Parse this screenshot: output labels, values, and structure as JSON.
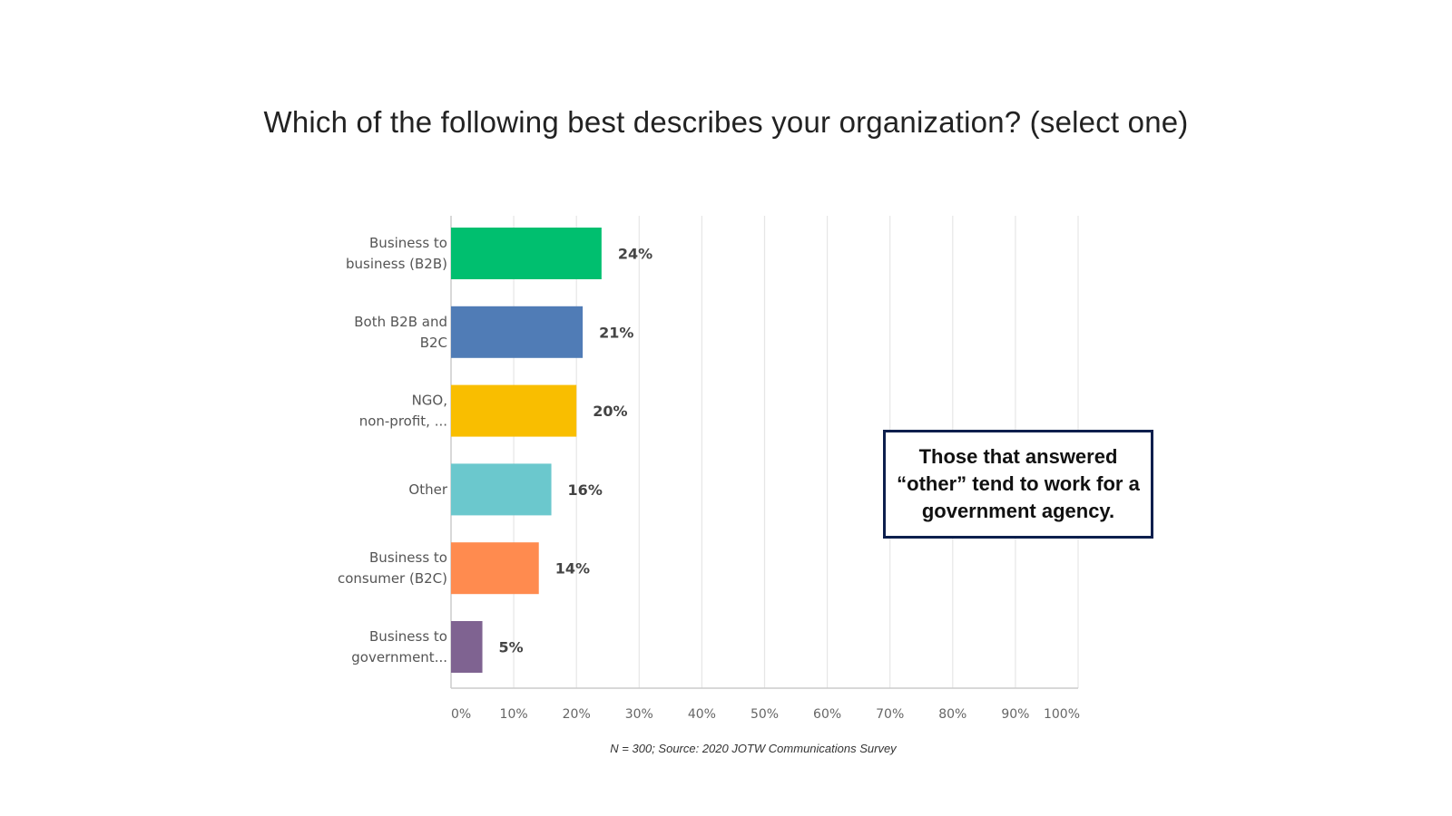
{
  "chart_data": {
    "type": "bar",
    "orientation": "horizontal",
    "title": "Which of the following best describes your organization? (select one)",
    "categories": [
      [
        "Business to",
        "business (B2B)"
      ],
      [
        "Both B2B and",
        "B2C"
      ],
      [
        "NGO,",
        "non-profit, ..."
      ],
      [
        "Other"
      ],
      [
        "Business to",
        "consumer (B2C)"
      ],
      [
        "Business to",
        "government..."
      ]
    ],
    "values": [
      24,
      21,
      20,
      16,
      14,
      5
    ],
    "value_labels": [
      "24%",
      "21%",
      "20%",
      "16%",
      "14%",
      "5%"
    ],
    "colors": [
      "#00bf6f",
      "#507cb6",
      "#f9be00",
      "#6bc8cd",
      "#ff8b4f",
      "#7f6391"
    ],
    "xlim": [
      0,
      100
    ],
    "ticks": [
      0,
      10,
      20,
      30,
      40,
      50,
      60,
      70,
      80,
      90,
      100
    ],
    "tick_labels": [
      "0%",
      "10%",
      "20%",
      "30%",
      "40%",
      "50%",
      "60%",
      "70%",
      "80%",
      "90%",
      "100%"
    ],
    "grid": true,
    "xlabel": "",
    "ylabel": ""
  },
  "callout": {
    "text": "Those that answered “other” tend to work for a government agency."
  },
  "source_note": "N = 300; Source: 2020 JOTW Communications Survey"
}
